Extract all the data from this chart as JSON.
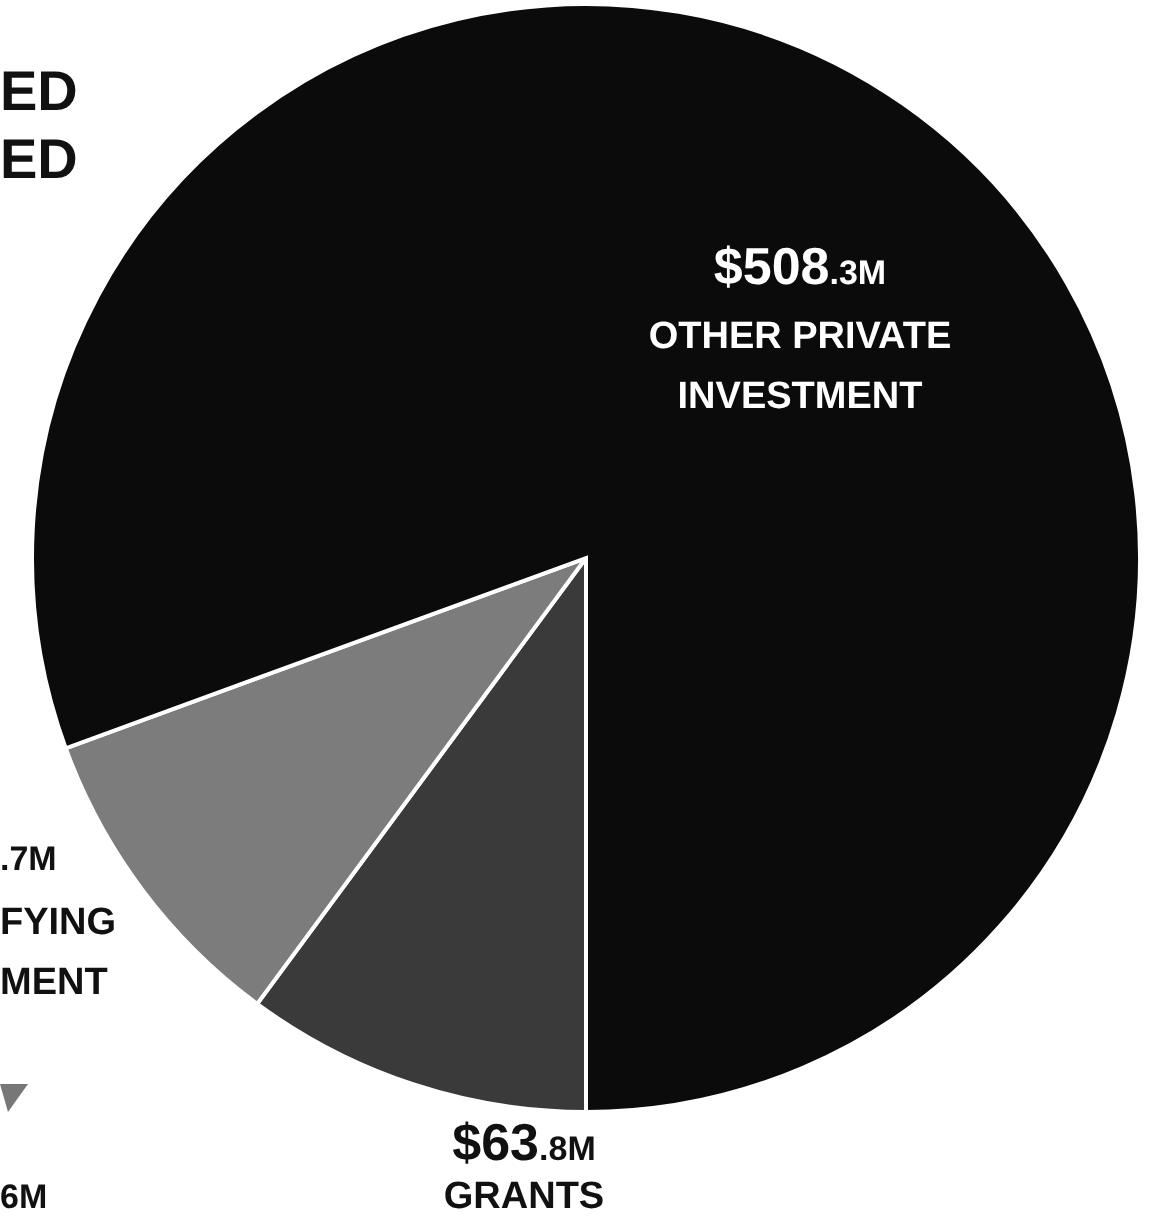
{
  "chart_data": {
    "type": "pie",
    "title": "ED\nED",
    "categories": [
      "GRANTS",
      "FYING\nMENT",
      "OTHER PRIVATE\nINVESTMENT"
    ],
    "values": [
      63.8,
      58.7,
      508.3
    ],
    "value_labels": [
      "$63.8M",
      null,
      "$508.3M"
    ],
    "colors": [
      "#3a3a3a",
      "#7c7c7c",
      "#0b0b0b"
    ],
    "annotations": [
      ".7M",
      "6M"
    ]
  }
}
